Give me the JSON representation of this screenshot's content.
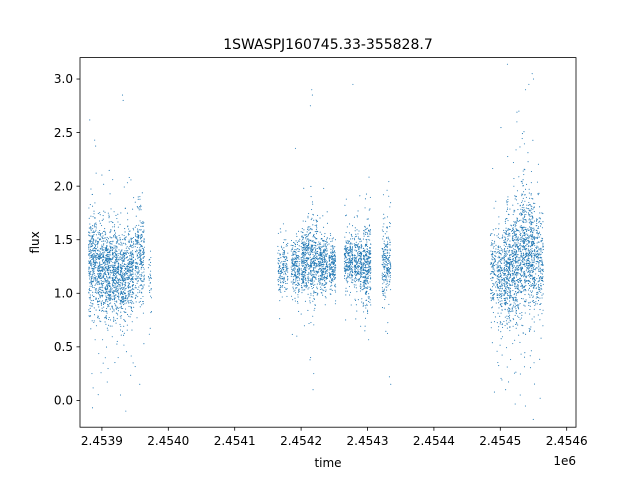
{
  "chart_data": {
    "type": "scatter",
    "title": "1SWASPJ160745.33-355828.7",
    "xlabel": "time",
    "ylabel": "flux",
    "x_offset_label": "1e6",
    "xlim": [
      2453867,
      2454614
    ],
    "ylim": [
      -0.25,
      3.2
    ],
    "x_ticks": [
      2453900,
      2454000,
      2454100,
      2454200,
      2454300,
      2454400,
      2454500,
      2454600
    ],
    "x_tick_labels": [
      "2.4539",
      "2.4540",
      "2.4541",
      "2.4542",
      "2.4543",
      "2.4544",
      "2.4545",
      "2.4546"
    ],
    "y_ticks": [
      0.0,
      0.5,
      1.0,
      1.5,
      2.0,
      2.5,
      3.0
    ],
    "y_tick_labels": [
      "0.0",
      "0.5",
      "1.0",
      "1.5",
      "2.0",
      "2.5",
      "3.0"
    ],
    "grid": false,
    "marker_color": "#1f77b4",
    "series": [
      {
        "clusters": [
          {
            "x_start": 2453880,
            "x_end": 2453892,
            "center": 1.3,
            "spread": 0.42,
            "count": 320
          },
          {
            "x_start": 2453893,
            "x_end": 2453903,
            "center": 1.25,
            "spread": 0.38,
            "count": 280
          },
          {
            "x_start": 2453904,
            "x_end": 2453914,
            "center": 1.2,
            "spread": 0.36,
            "count": 320
          },
          {
            "x_start": 2453915,
            "x_end": 2453926,
            "center": 1.2,
            "spread": 0.38,
            "count": 320
          },
          {
            "x_start": 2453927,
            "x_end": 2453937,
            "center": 1.15,
            "spread": 0.36,
            "count": 280
          },
          {
            "x_start": 2453938,
            "x_end": 2453948,
            "center": 1.2,
            "spread": 0.4,
            "count": 260
          },
          {
            "x_start": 2453950,
            "x_end": 2453964,
            "center": 1.35,
            "spread": 0.4,
            "count": 280
          },
          {
            "x_start": 2453970,
            "x_end": 2453975,
            "center": 1.1,
            "spread": 0.35,
            "count": 30
          },
          {
            "x_start": 2454165,
            "x_end": 2454180,
            "center": 1.22,
            "spread": 0.22,
            "count": 170
          },
          {
            "x_start": 2454185,
            "x_end": 2454198,
            "center": 1.25,
            "spread": 0.25,
            "count": 220
          },
          {
            "x_start": 2454200,
            "x_end": 2454212,
            "center": 1.3,
            "spread": 0.3,
            "count": 280
          },
          {
            "x_start": 2454213,
            "x_end": 2454225,
            "center": 1.3,
            "spread": 0.32,
            "count": 280
          },
          {
            "x_start": 2454226,
            "x_end": 2454240,
            "center": 1.28,
            "spread": 0.25,
            "count": 280
          },
          {
            "x_start": 2454242,
            "x_end": 2454252,
            "center": 1.25,
            "spread": 0.2,
            "count": 200
          },
          {
            "x_start": 2454265,
            "x_end": 2454278,
            "center": 1.3,
            "spread": 0.2,
            "count": 240
          },
          {
            "x_start": 2454280,
            "x_end": 2454292,
            "center": 1.3,
            "spread": 0.25,
            "count": 240
          },
          {
            "x_start": 2454293,
            "x_end": 2454305,
            "center": 1.25,
            "spread": 0.3,
            "count": 320
          },
          {
            "x_start": 2454322,
            "x_end": 2454335,
            "center": 1.3,
            "spread": 0.3,
            "count": 220
          },
          {
            "x_start": 2454485,
            "x_end": 2454494,
            "center": 1.2,
            "spread": 0.38,
            "count": 120
          },
          {
            "x_start": 2454495,
            "x_end": 2454504,
            "center": 1.15,
            "spread": 0.42,
            "count": 180
          },
          {
            "x_start": 2454505,
            "x_end": 2454516,
            "center": 1.2,
            "spread": 0.45,
            "count": 340
          },
          {
            "x_start": 2454517,
            "x_end": 2454528,
            "center": 1.3,
            "spread": 0.48,
            "count": 340
          },
          {
            "x_start": 2454529,
            "x_end": 2454540,
            "center": 1.35,
            "spread": 0.5,
            "count": 340
          },
          {
            "x_start": 2454541,
            "x_end": 2454552,
            "center": 1.35,
            "spread": 0.5,
            "count": 340
          },
          {
            "x_start": 2454553,
            "x_end": 2454565,
            "center": 1.3,
            "spread": 0.42,
            "count": 220
          }
        ],
        "outliers": [
          [
            2453931,
            2.85
          ],
          [
            2453932,
            2.8
          ],
          [
            2453936,
            -0.1
          ],
          [
            2453928,
            0.05
          ],
          [
            2453957,
            0.15
          ],
          [
            2453947,
            0.35
          ],
          [
            2454216,
            2.9
          ],
          [
            2454217,
            2.85
          ],
          [
            2454214,
            2.75
          ],
          [
            2454218,
            0.1
          ],
          [
            2454219,
            0.25
          ],
          [
            2454278,
            2.95
          ],
          [
            2454335,
            0.15
          ],
          [
            2454333,
            0.22
          ],
          [
            2454548,
            3.05
          ],
          [
            2454550,
            3.0
          ],
          [
            2454543,
            2.95
          ],
          [
            2454538,
            2.9
          ],
          [
            2454560,
            0.02
          ],
          [
            2454528,
            2.7
          ],
          [
            2454508,
            0.1
          ],
          [
            2454530,
            0.05
          ],
          [
            2454525,
            2.6
          ],
          [
            2453885,
            0.25
          ]
        ]
      }
    ]
  }
}
